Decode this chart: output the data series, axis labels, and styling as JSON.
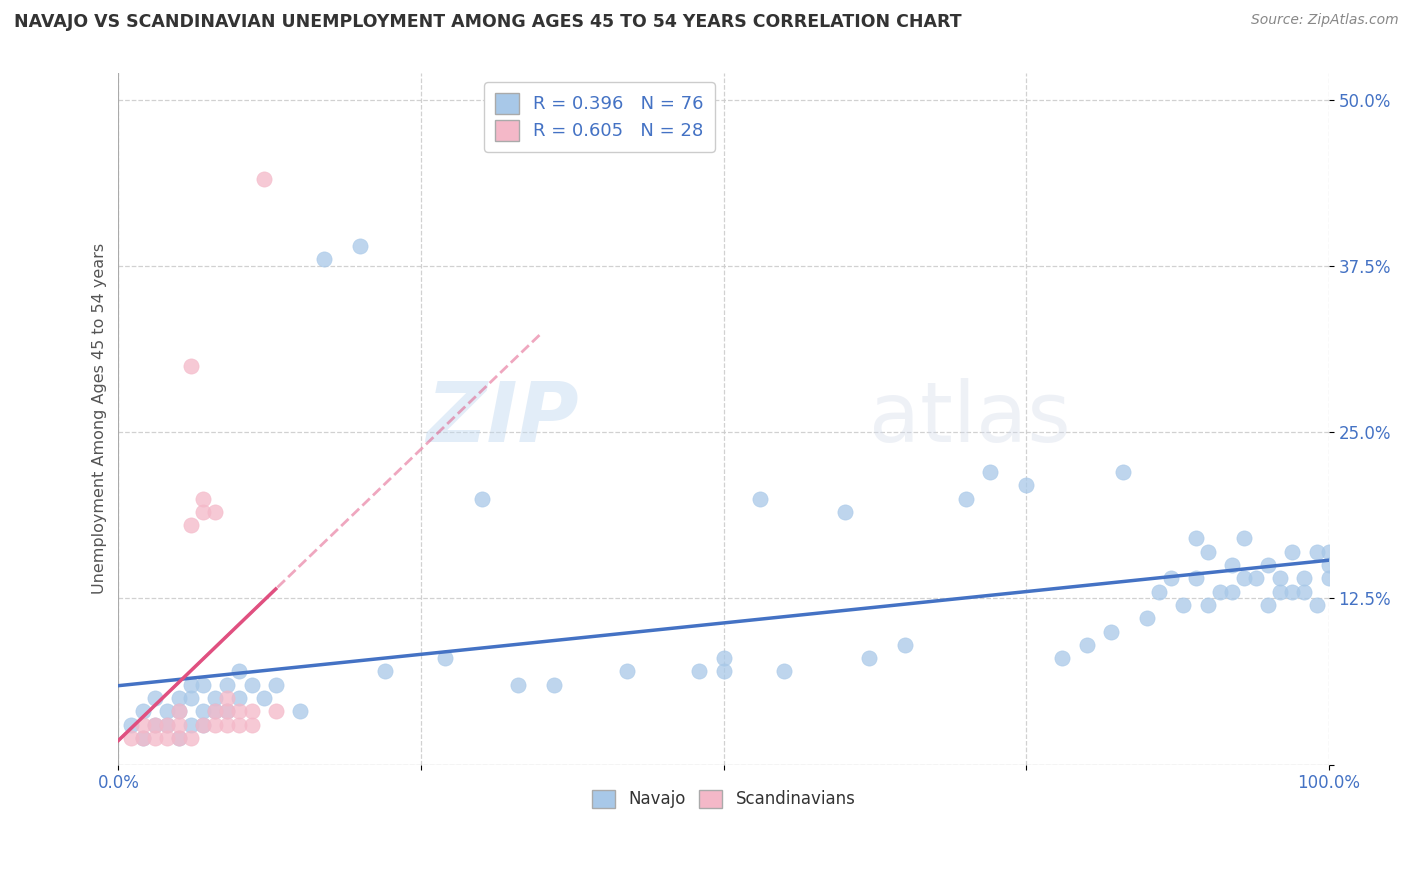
{
  "title": "NAVAJO VS SCANDINAVIAN UNEMPLOYMENT AMONG AGES 45 TO 54 YEARS CORRELATION CHART",
  "source": "Source: ZipAtlas.com",
  "ylabel": "Unemployment Among Ages 45 to 54 years",
  "xlim": [
    0.0,
    1.0
  ],
  "ylim": [
    0.0,
    0.52
  ],
  "xtick_vals": [
    0.0,
    0.25,
    0.5,
    0.75,
    1.0
  ],
  "xtick_labels": [
    "0.0%",
    "",
    "",
    "",
    "100.0%"
  ],
  "ytick_vals": [
    0.0,
    0.125,
    0.25,
    0.375,
    0.5
  ],
  "ytick_labels": [
    "",
    "12.5%",
    "25.0%",
    "37.5%",
    "50.0%"
  ],
  "navajo_R": 0.396,
  "navajo_N": 76,
  "scandinavian_R": 0.605,
  "scandinavian_N": 28,
  "navajo_color": "#a8c8e8",
  "scandinavian_color": "#f4b8c8",
  "navajo_line_color": "#4472c4",
  "scandinavian_line_color": "#e05080",
  "tick_label_color": "#4472c4",
  "watermark_zip": "ZIP",
  "watermark_atlas": "atlas",
  "bg_color": "#ffffff",
  "grid_color": "#cccccc",
  "title_color": "#333333",
  "source_color": "#888888",
  "legend_color": "#4472c4",
  "navajo_x": [
    0.01,
    0.02,
    0.02,
    0.03,
    0.03,
    0.04,
    0.04,
    0.05,
    0.05,
    0.05,
    0.06,
    0.06,
    0.06,
    0.07,
    0.07,
    0.07,
    0.08,
    0.08,
    0.09,
    0.09,
    0.1,
    0.1,
    0.11,
    0.12,
    0.13,
    0.15,
    0.17,
    0.2,
    0.22,
    0.27,
    0.3,
    0.33,
    0.36,
    0.42,
    0.48,
    0.5,
    0.5,
    0.53,
    0.55,
    0.6,
    0.62,
    0.65,
    0.7,
    0.72,
    0.75,
    0.78,
    0.8,
    0.82,
    0.83,
    0.85,
    0.86,
    0.87,
    0.88,
    0.89,
    0.89,
    0.9,
    0.9,
    0.91,
    0.92,
    0.92,
    0.93,
    0.93,
    0.94,
    0.95,
    0.95,
    0.96,
    0.96,
    0.97,
    0.97,
    0.98,
    0.98,
    0.99,
    0.99,
    1.0,
    1.0,
    1.0
  ],
  "navajo_y": [
    0.03,
    0.02,
    0.04,
    0.03,
    0.05,
    0.03,
    0.04,
    0.02,
    0.04,
    0.05,
    0.03,
    0.05,
    0.06,
    0.03,
    0.04,
    0.06,
    0.04,
    0.05,
    0.04,
    0.06,
    0.05,
    0.07,
    0.06,
    0.05,
    0.06,
    0.04,
    0.38,
    0.39,
    0.07,
    0.08,
    0.2,
    0.06,
    0.06,
    0.07,
    0.07,
    0.08,
    0.07,
    0.2,
    0.07,
    0.19,
    0.08,
    0.09,
    0.2,
    0.22,
    0.21,
    0.08,
    0.09,
    0.1,
    0.22,
    0.11,
    0.13,
    0.14,
    0.12,
    0.14,
    0.17,
    0.12,
    0.16,
    0.13,
    0.13,
    0.15,
    0.14,
    0.17,
    0.14,
    0.12,
    0.15,
    0.13,
    0.14,
    0.16,
    0.13,
    0.13,
    0.14,
    0.12,
    0.16,
    0.14,
    0.15,
    0.16
  ],
  "scandinavian_x": [
    0.01,
    0.02,
    0.02,
    0.03,
    0.03,
    0.04,
    0.04,
    0.05,
    0.05,
    0.05,
    0.06,
    0.06,
    0.06,
    0.07,
    0.07,
    0.07,
    0.08,
    0.08,
    0.08,
    0.09,
    0.09,
    0.09,
    0.1,
    0.1,
    0.11,
    0.11,
    0.12,
    0.13
  ],
  "scandinavian_y": [
    0.02,
    0.02,
    0.03,
    0.02,
    0.03,
    0.02,
    0.03,
    0.02,
    0.03,
    0.04,
    0.02,
    0.18,
    0.3,
    0.03,
    0.19,
    0.2,
    0.03,
    0.04,
    0.19,
    0.03,
    0.04,
    0.05,
    0.03,
    0.04,
    0.03,
    0.04,
    0.44,
    0.04
  ]
}
